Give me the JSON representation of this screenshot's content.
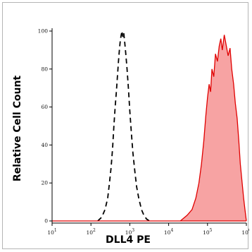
{
  "chart_data": {
    "type": "area",
    "xlabel": "DLL4 PE",
    "ylabel": "Relative Cell Count",
    "xscale": "log",
    "xlim": [
      10,
      1000000
    ],
    "ylim": [
      0,
      100
    ],
    "x_ticks": [
      {
        "base": "10",
        "exp": "1",
        "value": 10
      },
      {
        "base": "10",
        "exp": "2",
        "value": 100
      },
      {
        "base": "10",
        "exp": "3",
        "value": 1000
      },
      {
        "base": "10",
        "exp": "4",
        "value": 10000
      },
      {
        "base": "10",
        "exp": "5",
        "value": 100000
      },
      {
        "base": "10",
        "exp": "6",
        "value": 1000000
      }
    ],
    "y_ticks": [
      "0",
      "20",
      "40",
      "60",
      "80",
      "100"
    ],
    "grid": false,
    "series": [
      {
        "style": "dashed-outline",
        "color": "#000000",
        "points": [
          [
            150,
            0
          ],
          [
            190,
            2
          ],
          [
            230,
            6
          ],
          [
            270,
            12
          ],
          [
            300,
            20
          ],
          [
            330,
            28
          ],
          [
            360,
            38
          ],
          [
            390,
            50
          ],
          [
            420,
            60
          ],
          [
            450,
            68
          ],
          [
            480,
            76
          ],
          [
            510,
            84
          ],
          [
            540,
            90
          ],
          [
            570,
            95
          ],
          [
            600,
            98
          ],
          [
            630,
            100
          ],
          [
            660,
            97
          ],
          [
            700,
            99
          ],
          [
            740,
            94
          ],
          [
            790,
            88
          ],
          [
            850,
            80
          ],
          [
            920,
            70
          ],
          [
            1000,
            58
          ],
          [
            1100,
            46
          ],
          [
            1200,
            36
          ],
          [
            1350,
            26
          ],
          [
            1500,
            18
          ],
          [
            1700,
            12
          ],
          [
            2000,
            6
          ],
          [
            2300,
            3
          ],
          [
            2700,
            1
          ],
          [
            3200,
            0
          ]
        ]
      },
      {
        "style": "filled",
        "color": "#e00000",
        "fill": "#f7a3a3",
        "points": [
          [
            20000,
            0
          ],
          [
            30000,
            3
          ],
          [
            40000,
            6
          ],
          [
            50000,
            12
          ],
          [
            60000,
            20
          ],
          [
            70000,
            30
          ],
          [
            80000,
            42
          ],
          [
            90000,
            55
          ],
          [
            100000,
            65
          ],
          [
            110000,
            72
          ],
          [
            120000,
            68
          ],
          [
            130000,
            80
          ],
          [
            145000,
            76
          ],
          [
            160000,
            88
          ],
          [
            180000,
            84
          ],
          [
            200000,
            92
          ],
          [
            220000,
            96
          ],
          [
            240000,
            90
          ],
          [
            270000,
            98
          ],
          [
            300000,
            93
          ],
          [
            340000,
            87
          ],
          [
            380000,
            91
          ],
          [
            420000,
            80
          ],
          [
            470000,
            72
          ],
          [
            520000,
            62
          ],
          [
            580000,
            54
          ],
          [
            640000,
            42
          ],
          [
            700000,
            30
          ],
          [
            780000,
            20
          ],
          [
            850000,
            12
          ],
          [
            920000,
            6
          ],
          [
            1000000,
            0
          ]
        ]
      }
    ]
  }
}
